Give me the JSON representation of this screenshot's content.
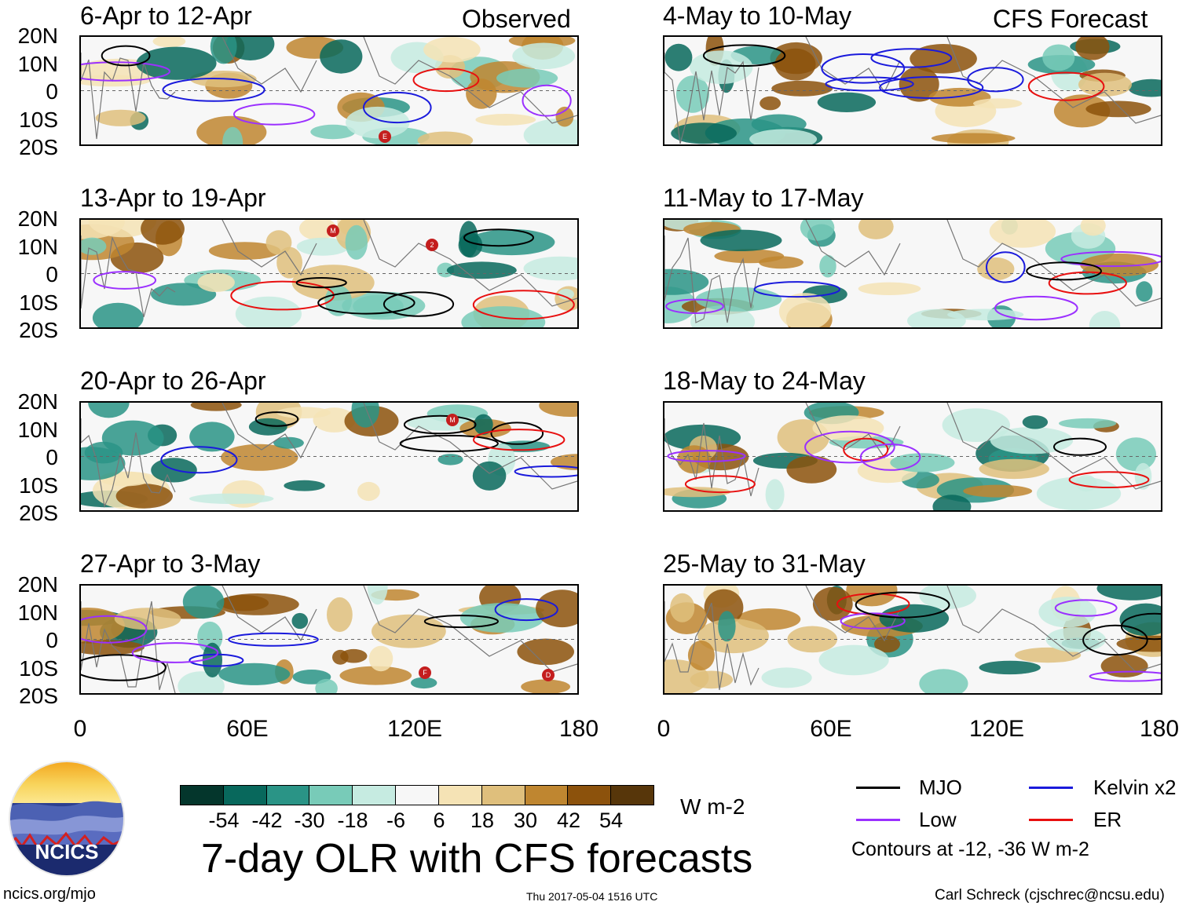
{
  "headers": {
    "observed": "Observed",
    "forecast": "CFS Forecast"
  },
  "observed_panels": [
    {
      "period": "6-Apr to 12-Apr",
      "markers": [
        "E"
      ]
    },
    {
      "period": "13-Apr to 19-Apr",
      "markers": [
        "M",
        "2"
      ]
    },
    {
      "period": "20-Apr to 26-Apr",
      "markers": [
        "M"
      ]
    },
    {
      "period": "27-Apr to 3-May",
      "markers": [
        "F",
        "D"
      ]
    }
  ],
  "forecast_panels": [
    {
      "period": "4-May to 10-May"
    },
    {
      "period": "11-May to 17-May"
    },
    {
      "period": "18-May to 24-May"
    },
    {
      "period": "25-May to 31-May"
    }
  ],
  "y_axis": [
    "20N",
    "10N",
    "0",
    "10S",
    "20S"
  ],
  "x_axis": [
    "0",
    "60E",
    "120E",
    "180"
  ],
  "colorbar": {
    "unit": "W m-2",
    "labels": [
      "-54",
      "-42",
      "-30",
      "-18",
      "-6",
      "6",
      "18",
      "30",
      "42",
      "54"
    ],
    "colors": [
      "#04362c",
      "#08685c",
      "#2a9486",
      "#78cbb8",
      "#c6ebe1",
      "#f7f7f7",
      "#f5e3b5",
      "#dfbf7c",
      "#bf8630",
      "#8c520c",
      "#57360a"
    ]
  },
  "legend": {
    "items": [
      {
        "label": "MJO",
        "color": "#000000"
      },
      {
        "label": "Kelvin x2",
        "color": "#1a1adc"
      },
      {
        "label": "Low",
        "color": "#9b30ff"
      },
      {
        "label": "ER",
        "color": "#e81010"
      }
    ],
    "contours_note": "Contours at -12, -36 W m-2"
  },
  "title": "7-day OLR with CFS forecasts",
  "footer": {
    "website": "ncics.org/mjo",
    "timestamp": "Thu 2017-05-04 1516 UTC",
    "credit": "Carl Schreck (cjschrec@ncsu.edu)"
  },
  "logo": {
    "text": "NCICS"
  }
}
